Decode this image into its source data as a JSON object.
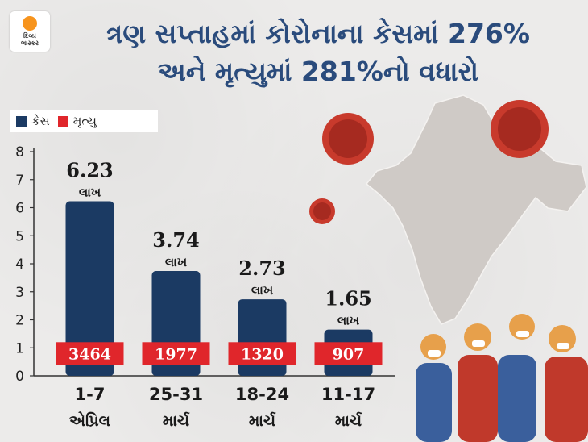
{
  "logo": {
    "line1": "દિવ્ય",
    "line2": "ભાસ્કર"
  },
  "headline": {
    "line1": "ત્રણ સપ્તાહમાં કોરોનાના કેસમાં 276%",
    "line2": "અને મૃત્યુમાં 281%નો વધારો"
  },
  "legend": {
    "cases": {
      "label": "કેસ",
      "color": "#1b3a63"
    },
    "deaths": {
      "label": "મૃત્યુ",
      "color": "#e0262b"
    }
  },
  "chart_data": {
    "type": "bar",
    "title": "",
    "xlabel": "",
    "ylabel": "",
    "ylim": [
      0,
      8
    ],
    "yticks": [
      "0",
      "1",
      "2",
      "3",
      "4",
      "5",
      "6",
      "7",
      "8"
    ],
    "categories": [
      {
        "line1": "1-7",
        "line2": "એપ્રિલ"
      },
      {
        "line1": "25-31",
        "line2": "માર્ચ"
      },
      {
        "line1": "18-24",
        "line2": "માર્ચ"
      },
      {
        "line1": "11-17",
        "line2": "માર્ચ"
      }
    ],
    "series": [
      {
        "name": "કેસ",
        "unit": "લાખ",
        "color": "#1b3a63",
        "values": [
          6.23,
          3.74,
          2.73,
          1.65
        ],
        "labels": [
          "6.23",
          "3.74",
          "2.73",
          "1.65"
        ]
      },
      {
        "name": "મૃત્યુ",
        "color": "#e0262b",
        "values": [
          3464,
          1977,
          1320,
          907
        ],
        "labels": [
          "3464",
          "1977",
          "1320",
          "907"
        ]
      }
    ],
    "grid": false
  }
}
